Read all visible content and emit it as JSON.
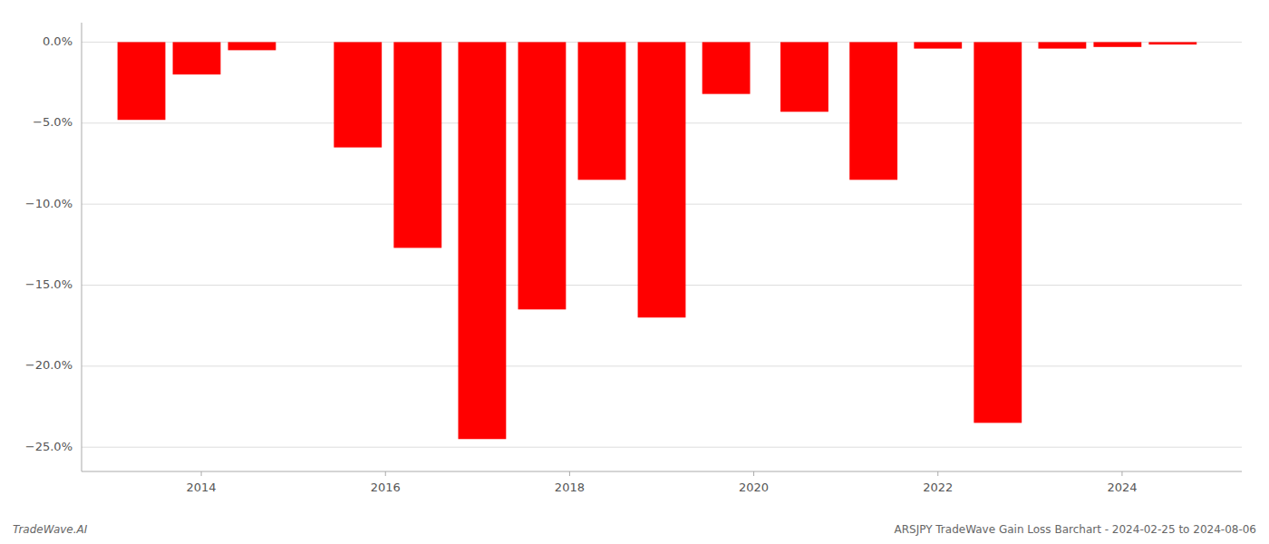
{
  "chart_data": {
    "type": "bar",
    "x": [
      2013.35,
      2013.95,
      2014.55,
      2015.7,
      2016.35,
      2017.05,
      2017.7,
      2018.35,
      2019.0,
      2019.7,
      2020.55,
      2021.3,
      2022.0,
      2022.65,
      2023.35,
      2023.95,
      2024.55
    ],
    "values": [
      -4.8,
      -2.0,
      -0.5,
      -6.5,
      -12.7,
      -24.5,
      -16.5,
      -8.5,
      -17.0,
      -3.2,
      -4.3,
      -8.5,
      -0.4,
      -23.5,
      -0.4,
      -0.3,
      -0.15
    ],
    "color": "#ff0000",
    "xlim": [
      2012.7,
      2025.3
    ],
    "xticks": [
      2014,
      2016,
      2018,
      2020,
      2022,
      2024
    ],
    "ylim": [
      -26.5,
      1.2
    ],
    "yticks": [
      {
        "value": 0.0,
        "label": "0.0%"
      },
      {
        "value": -5.0,
        "label": "−5.0%"
      },
      {
        "value": -10.0,
        "label": "−10.0%"
      },
      {
        "value": -15.0,
        "label": "−15.0%"
      },
      {
        "value": -20.0,
        "label": "−20.0%"
      },
      {
        "value": -25.0,
        "label": "−25.0%"
      }
    ],
    "grid": true,
    "annotations": [
      "TradeWave.AI",
      "ARSJPY TradeWave Gain Loss Barchart - 2024-02-25 to 2024-08-06"
    ]
  }
}
